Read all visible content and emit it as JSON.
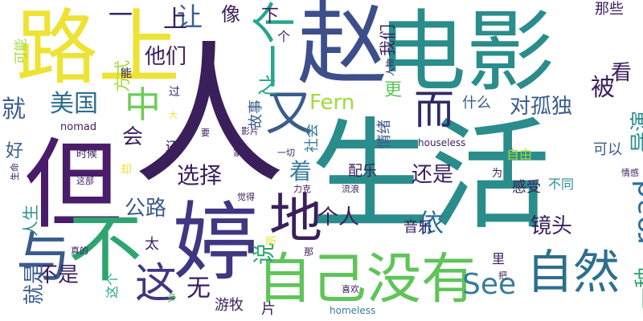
{
  "word_cloud": {
    "background": "#ffffff",
    "words": [
      {
        "text": "人",
        "color": "#3b1f5b"
      },
      {
        "text": "电影",
        "color": "#2a8d8c"
      },
      {
        "text": "生活",
        "color": "#2a8d8c"
      },
      {
        "text": "赵",
        "color": "#3c4f8a"
      },
      {
        "text": "婷",
        "color": "#3f3783"
      },
      {
        "text": "路上",
        "color": "#ede334"
      },
      {
        "text": "但",
        "color": "#4a1d6b"
      },
      {
        "text": "不",
        "color": "#2ea56f"
      },
      {
        "text": "与",
        "color": "#3a5c8c"
      },
      {
        "text": "自己没有",
        "color": "#5fc45a"
      },
      {
        "text": "自然",
        "color": "#2e6e8e"
      },
      {
        "text": "这",
        "color": "#3f3783"
      },
      {
        "text": "地",
        "color": "#3b1f5b"
      },
      {
        "text": "中",
        "color": "#6ccd55"
      },
      {
        "text": "而",
        "color": "#2f2a6b"
      },
      {
        "text": "又",
        "color": "#3a5c8c"
      },
      {
        "text": "一个",
        "color": "#26a68a"
      },
      {
        "text": "之",
        "color": "#26a68a"
      },
      {
        "text": "Fern",
        "color": "#9fda3a"
      },
      {
        "text": "See",
        "color": "#3a7c9c"
      },
      {
        "text": "road",
        "color": "#2a6f9a"
      },
      {
        "text": "导演",
        "color": "#2a8d8c"
      },
      {
        "text": "被",
        "color": "#3b1f5b"
      },
      {
        "text": "一种",
        "color": "#2ea56f"
      },
      {
        "text": "让",
        "color": "#3a5c8c"
      },
      {
        "text": "上",
        "color": "#3b1f5b"
      },
      {
        "text": "一",
        "color": "#2f2a6b"
      },
      {
        "text": "美国",
        "color": "#2e6e8e"
      },
      {
        "text": "就",
        "color": "#3a5c8c"
      },
      {
        "text": "他们",
        "color": "#3b1f5b"
      },
      {
        "text": "更",
        "color": "#5fc45a"
      },
      {
        "text": "看",
        "color": "#3b1f5b"
      },
      {
        "text": "对孤独",
        "color": "#3a5c8c"
      },
      {
        "text": "选择",
        "color": "#3b1f5b"
      },
      {
        "text": "还是",
        "color": "#3b1f5b"
      },
      {
        "text": "着",
        "color": "#3a7c9c"
      },
      {
        "text": "公路",
        "color": "#3a5c8c"
      },
      {
        "text": "个人",
        "color": "#3b1f5b"
      },
      {
        "text": "依",
        "color": "#2a6f9a"
      },
      {
        "text": "镜头",
        "color": "#3b1f5b"
      },
      {
        "text": "说",
        "color": "#2ea56f"
      },
      {
        "text": "无",
        "color": "#3b1f5b"
      },
      {
        "text": "不是",
        "color": "#3b1f5b"
      },
      {
        "text": "会",
        "color": "#3b1f5b"
      },
      {
        "text": "好",
        "color": "#3a5c8c"
      },
      {
        "text": "人生",
        "color": "#2a8d8c"
      },
      {
        "text": "就是",
        "color": "#3a5c8c"
      },
      {
        "text": "方式",
        "color": "#9fda3a"
      },
      {
        "text": "像",
        "color": "#3b1f5b"
      },
      {
        "text": "下",
        "color": "#3b1f5b"
      },
      {
        "text": "我们",
        "color": "#3b1f5b"
      },
      {
        "text": "那些",
        "color": "#3b1f5b"
      },
      {
        "text": "什么",
        "color": "#3a5c8c"
      },
      {
        "text": "故事",
        "color": "#3a5c8c"
      },
      {
        "text": "社会",
        "color": "#3a7c9c"
      },
      {
        "text": "情绪",
        "color": "#3a5c8c"
      },
      {
        "text": "配乐",
        "color": "#3b1f5b"
      },
      {
        "text": "音乐",
        "color": "#3b1f5b"
      },
      {
        "text": "可以",
        "color": "#3a5c8c"
      },
      {
        "text": "自由",
        "color": "#9fda3a"
      },
      {
        "text": "感受",
        "color": "#3b1f5b"
      },
      {
        "text": "不同",
        "color": "#2a8d8c"
      },
      {
        "text": "游牧",
        "color": "#3b1f5b"
      },
      {
        "text": "太",
        "color": "#3b1f5b"
      },
      {
        "text": "可能",
        "color": "#9fda3a"
      },
      {
        "text": "还",
        "color": "#3b1f5b"
      },
      {
        "text": "过",
        "color": "#3b1f5b"
      },
      {
        "text": "能",
        "color": "#3b1f5b"
      },
      {
        "text": "个",
        "color": "#3b1f5b"
      },
      {
        "text": "人物",
        "color": "#3b1f5b"
      },
      {
        "text": "大",
        "color": "#ede334"
      },
      {
        "text": "要",
        "color": "#3b1f5b"
      },
      {
        "text": "影片",
        "color": "#3b1f5b"
      },
      {
        "text": "时候",
        "color": "#3b1f5b"
      },
      {
        "text": "这部",
        "color": "#3b1f5b"
      },
      {
        "text": "却",
        "color": "#ede334"
      },
      {
        "text": "生命",
        "color": "#3b1f5b"
      },
      {
        "text": "真的",
        "color": "#3b1f5b"
      },
      {
        "text": "这个",
        "color": "#26a68a"
      },
      {
        "text": "多",
        "color": "#5fc45a"
      },
      {
        "text": "把",
        "color": "#3b1f5b"
      },
      {
        "text": "喜欢",
        "color": "#3b1f5b"
      },
      {
        "text": "那",
        "color": "#3b1f5b"
      },
      {
        "text": "所",
        "color": "#ede334"
      },
      {
        "text": "里",
        "color": "#3b1f5b"
      },
      {
        "text": "片",
        "color": "#3b1f5b"
      },
      {
        "text": "觉得",
        "color": "#3b1f5b"
      },
      {
        "text": "力克",
        "color": "#3b1f5b"
      },
      {
        "text": "流浪",
        "color": "#3b1f5b"
      },
      {
        "text": "为",
        "color": "#3b1f5b"
      },
      {
        "text": "情感",
        "color": "#3b1f5b"
      },
      {
        "text": "一切",
        "color": "#3b1f5b"
      },
      {
        "text": "家",
        "color": "#3b1f5b"
      },
      {
        "text": "nomad",
        "color": "#3b1f5b"
      },
      {
        "text": "houseless",
        "color": "#3b1f5b"
      },
      {
        "text": "homeless",
        "color": "#3a7c9c"
      }
    ]
  }
}
